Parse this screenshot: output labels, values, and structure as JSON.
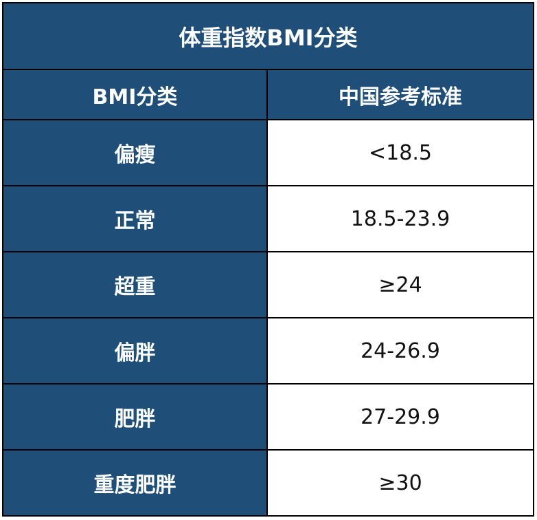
{
  "table": {
    "title": "体重指数BMI分类",
    "headers": [
      "BMI分类",
      "中国参考标准"
    ],
    "rows": [
      {
        "category": "偏瘦",
        "standard": "<18.5"
      },
      {
        "category": "正常",
        "standard": "18.5-23.9"
      },
      {
        "category": "超重",
        "standard": "≥24"
      },
      {
        "category": "偏胖",
        "standard": "24-26.9"
      },
      {
        "category": "肥胖",
        "standard": "27-29.9"
      },
      {
        "category": "重度肥胖",
        "standard": "≥30"
      }
    ]
  },
  "colors": {
    "header_bg": "#1f4e79",
    "header_text": "#ffffff",
    "value_bg": "#ffffff",
    "border": "#000000"
  }
}
